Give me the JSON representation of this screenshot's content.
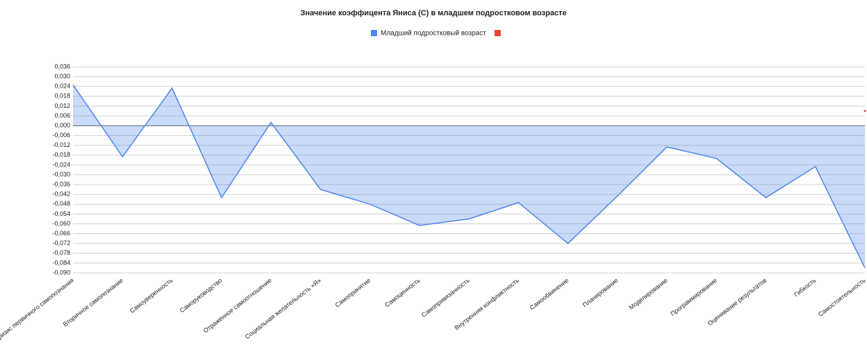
{
  "chart_data": {
    "type": "area",
    "title": "Значение коэффицента Яниса (С) в младшем подростковом возрасте",
    "categories": [
      "Кризис первичного самопознания",
      "Вторичное самопознание",
      "Самоуверенность",
      "Саморуководство",
      "Отраженное самоотношение",
      "Социальная желательность «Я»",
      "Самопринятие",
      "Самоценность",
      "Самопривязанность",
      "Внутренняя конфликтность",
      "Самообвинение",
      "Планирование",
      "Моделирование",
      "Программирование",
      "Оценивание результатов",
      "Гибкость",
      "Самостоятельность"
    ],
    "series": [
      {
        "name": "Младший подростковый возраст",
        "color": "#4f86ec",
        "values": [
          0.025,
          -0.019,
          0.023,
          -0.044,
          0.002,
          -0.039,
          -0.048,
          -0.061,
          -0.057,
          -0.047,
          -0.072,
          -0.043,
          -0.013,
          -0.02,
          -0.044,
          -0.025,
          -0.087
        ]
      },
      {
        "color": "#ea4335",
        "values": [
          null,
          null,
          null,
          null,
          null,
          null,
          null,
          null,
          null,
          null,
          null,
          null,
          null,
          null,
          null,
          null,
          0.009
        ]
      }
    ],
    "ylim": [
      -0.09,
      0.036
    ],
    "yticks": [
      {
        "value": 0.036,
        "label": "0,036"
      },
      {
        "value": 0.03,
        "label": "0,030"
      },
      {
        "value": 0.024,
        "label": "0,024"
      },
      {
        "value": 0.018,
        "label": "0,018"
      },
      {
        "value": 0.012,
        "label": "0,012"
      },
      {
        "value": 0.006,
        "label": "0,006"
      },
      {
        "value": 0.0,
        "label": "0,000"
      },
      {
        "value": -0.006,
        "label": "-0,006"
      },
      {
        "value": -0.012,
        "label": "-0,012"
      },
      {
        "value": -0.018,
        "label": "-0,018"
      },
      {
        "value": -0.024,
        "label": "-0,024"
      },
      {
        "value": -0.03,
        "label": "-0,030"
      },
      {
        "value": -0.036,
        "label": "-0,036"
      },
      {
        "value": -0.042,
        "label": "-0,042"
      },
      {
        "value": -0.048,
        "label": "-0,048"
      },
      {
        "value": -0.054,
        "label": "-0,054"
      },
      {
        "value": -0.06,
        "label": "-0,060"
      },
      {
        "value": -0.066,
        "label": "-0,066"
      },
      {
        "value": -0.072,
        "label": "-0,072"
      },
      {
        "value": -0.078,
        "label": "-0,078"
      },
      {
        "value": -0.084,
        "label": "-0,084"
      },
      {
        "value": -0.09,
        "label": "-0,090"
      }
    ],
    "grid": true
  }
}
